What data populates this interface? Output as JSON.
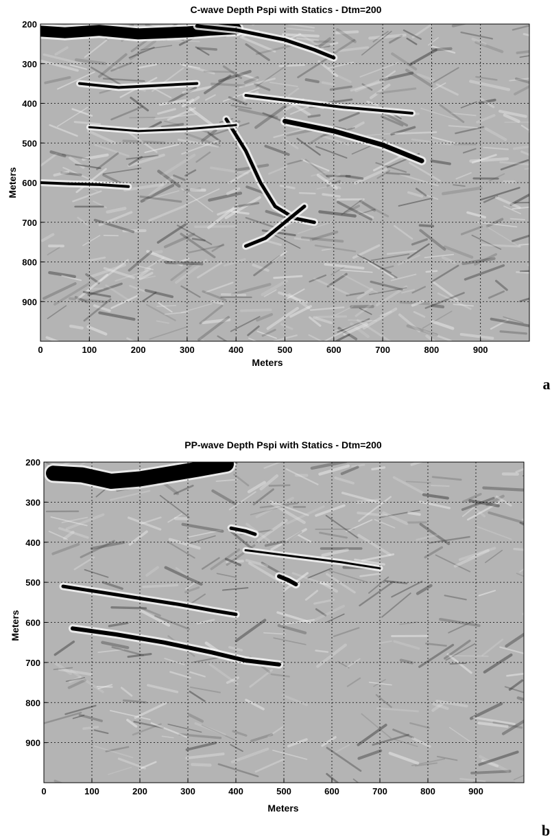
{
  "chart_data": [
    {
      "type": "heatmap",
      "title": "C-wave Depth Pspi with Statics - Dtm=200",
      "xlabel": "Meters",
      "ylabel": "Meters",
      "xlim": [
        0,
        1000
      ],
      "ylim": [
        200,
        1000
      ],
      "y_reversed": true,
      "x_ticks": [
        "0",
        "100",
        "200",
        "300",
        "400",
        "500",
        "600",
        "700",
        "800",
        "900"
      ],
      "y_ticks": [
        "200",
        "300",
        "400",
        "500",
        "600",
        "700",
        "800",
        "900"
      ],
      "grid": true,
      "colormap": "grayscale",
      "panel_label": "a",
      "reflectors": [
        {
          "x": [
            0,
            50,
            120,
            200,
            300,
            350,
            400
          ],
          "y": [
            218,
            222,
            216,
            225,
            220,
            215,
            212
          ],
          "w": 16
        },
        {
          "x": [
            320,
            400,
            500,
            560,
            600
          ],
          "y": [
            205,
            215,
            240,
            265,
            285
          ],
          "w": 5
        },
        {
          "x": [
            500,
            600,
            700,
            780
          ],
          "y": [
            445,
            470,
            505,
            545
          ],
          "w": 7
        },
        {
          "x": [
            380,
            420,
            450,
            480,
            520,
            560
          ],
          "y": [
            440,
            520,
            600,
            660,
            690,
            700
          ],
          "w": 5
        },
        {
          "x": [
            420,
            460,
            500,
            540
          ],
          "y": [
            760,
            740,
            700,
            660
          ],
          "w": 5
        },
        {
          "x": [
            0,
            60,
            120,
            180
          ],
          "y": [
            600,
            603,
            605,
            610
          ],
          "w": 4
        },
        {
          "x": [
            420,
            520,
            620,
            760
          ],
          "y": [
            380,
            395,
            410,
            425
          ],
          "w": 4
        },
        {
          "x": [
            80,
            160,
            240,
            320
          ],
          "y": [
            350,
            360,
            355,
            350
          ],
          "w": 4
        },
        {
          "x": [
            100,
            200,
            300,
            400
          ],
          "y": [
            460,
            470,
            465,
            455
          ],
          "w": 3
        }
      ]
    },
    {
      "type": "heatmap",
      "title": "PP-wave Depth Pspi with Statics - Dtm=200",
      "xlabel": "Meters",
      "ylabel": "Meters",
      "xlim": [
        0,
        1000
      ],
      "ylim": [
        200,
        1000
      ],
      "y_reversed": true,
      "x_ticks": [
        "0",
        "100",
        "200",
        "300",
        "400",
        "500",
        "600",
        "700",
        "800",
        "900"
      ],
      "y_ticks": [
        "200",
        "300",
        "400",
        "500",
        "600",
        "700",
        "800",
        "900"
      ],
      "grid": true,
      "colormap": "grayscale",
      "panel_label": "b",
      "reflectors": [
        {
          "x": [
            20,
            80,
            140,
            200,
            260,
            320,
            380
          ],
          "y": [
            228,
            232,
            248,
            242,
            230,
            218,
            205
          ],
          "w": 22
        },
        {
          "x": [
            40,
            120,
            200,
            280,
            350,
            400
          ],
          "y": [
            510,
            525,
            540,
            555,
            570,
            580
          ],
          "w": 5
        },
        {
          "x": [
            60,
            150,
            250,
            350,
            420,
            490
          ],
          "y": [
            615,
            630,
            650,
            675,
            695,
            705
          ],
          "w": 6
        },
        {
          "x": [
            390,
            420,
            440
          ],
          "y": [
            365,
            372,
            380
          ],
          "w": 5
        },
        {
          "x": [
            490,
            510,
            525
          ],
          "y": [
            485,
            495,
            505
          ],
          "w": 6
        },
        {
          "x": [
            420,
            520,
            620,
            700
          ],
          "y": [
            420,
            435,
            450,
            465
          ],
          "w": 3
        }
      ]
    }
  ]
}
